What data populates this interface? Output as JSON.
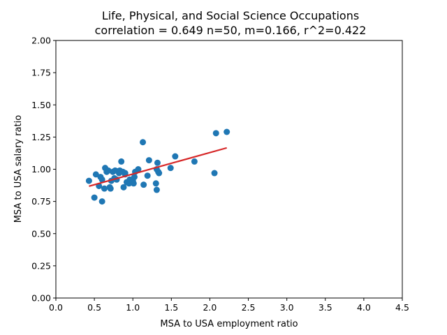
{
  "chart_data": {
    "type": "scatter",
    "title": "Life, Physical, and Social Science Occupations",
    "subtitle": "correlation = 0.649 n=50, m=0.166, r^2=0.422",
    "xlabel": "MSA to USA employment ratio",
    "ylabel": "MSA to USA salary ratio",
    "xlim": [
      0,
      4.5
    ],
    "ylim": [
      0,
      2.0
    ],
    "x_ticks": [
      "0.0",
      "0.5",
      "1.0",
      "1.5",
      "2.0",
      "2.5",
      "3.0",
      "3.5",
      "4.0",
      "4.5"
    ],
    "y_ticks": [
      "0.00",
      "0.25",
      "0.50",
      "0.75",
      "1.00",
      "1.25",
      "1.50",
      "1.75",
      "2.00"
    ],
    "grid": false,
    "legend": "none",
    "point_color": "#1f77b4",
    "line_color": "#d62728",
    "points": [
      [
        0.43,
        0.91
      ],
      [
        0.5,
        0.78
      ],
      [
        0.52,
        0.96
      ],
      [
        0.56,
        0.87
      ],
      [
        0.58,
        0.94
      ],
      [
        0.6,
        0.92
      ],
      [
        0.6,
        0.75
      ],
      [
        0.63,
        0.85
      ],
      [
        0.64,
        1.01
      ],
      [
        0.66,
        0.98
      ],
      [
        0.7,
        0.86
      ],
      [
        0.71,
        0.85
      ],
      [
        0.72,
        0.91
      ],
      [
        0.74,
        0.98
      ],
      [
        0.77,
        0.99
      ],
      [
        0.79,
        0.92
      ],
      [
        0.83,
        0.99
      ],
      [
        0.85,
        1.06
      ],
      [
        0.87,
        0.98
      ],
      [
        0.88,
        0.86
      ],
      [
        0.9,
        0.97
      ],
      [
        0.92,
        0.9
      ],
      [
        0.95,
        0.89
      ],
      [
        0.98,
        0.91
      ],
      [
        1.0,
        0.91
      ],
      [
        1.01,
        0.89
      ],
      [
        1.03,
        0.98
      ],
      [
        1.07,
        1.0
      ],
      [
        1.13,
        1.21
      ],
      [
        1.14,
        0.88
      ],
      [
        1.19,
        0.95
      ],
      [
        1.21,
        1.07
      ],
      [
        1.3,
        0.89
      ],
      [
        1.31,
        1.0
      ],
      [
        1.31,
        0.84
      ],
      [
        1.32,
        1.05
      ],
      [
        1.34,
        0.97
      ],
      [
        1.49,
        1.01
      ],
      [
        1.55,
        1.1
      ],
      [
        1.8,
        1.06
      ],
      [
        2.06,
        0.97
      ],
      [
        2.08,
        1.28
      ],
      [
        2.22,
        1.29
      ],
      [
        0.68,
        0.99
      ],
      [
        0.82,
        0.97
      ],
      [
        0.76,
        0.93
      ],
      [
        0.96,
        0.92
      ],
      [
        1.33,
        0.98
      ],
      [
        0.9,
        0.96
      ],
      [
        1.02,
        0.94
      ]
    ],
    "trend_line": {
      "x": [
        0.43,
        2.22
      ],
      "y": [
        0.868,
        1.166
      ]
    }
  }
}
